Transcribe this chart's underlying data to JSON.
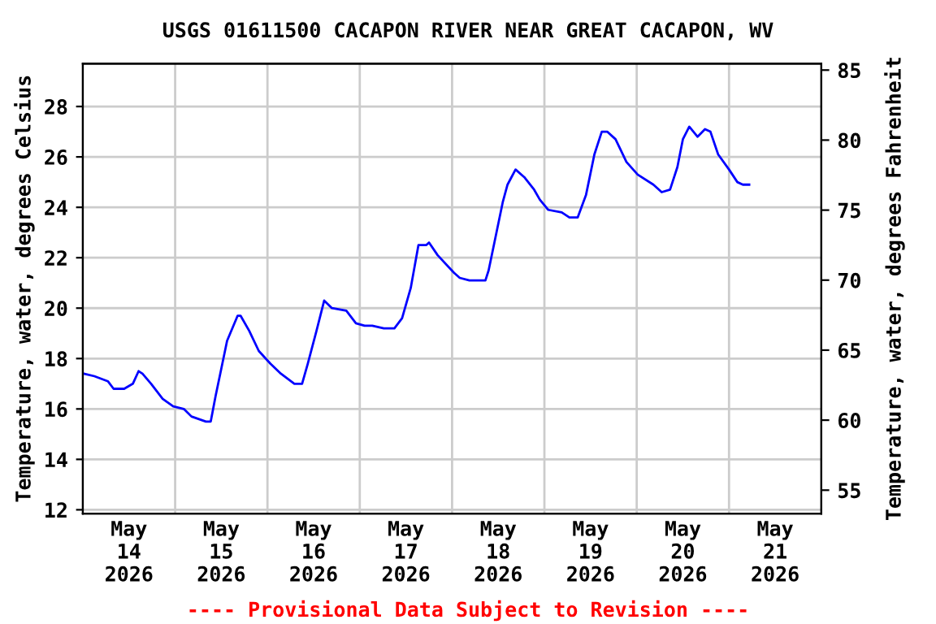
{
  "chart_data": {
    "type": "line",
    "title": "USGS 01611500 CACAPON RIVER NEAR GREAT CACAPON, WV",
    "ylabel": "Temperature, water, degrees Celsius",
    "y2label": "Temperature, water, degrees Fahrenheit",
    "annotations": [
      "---- Provisional Data Subject to Revision ----"
    ],
    "x": [
      "2026-05-14T00:15",
      "2026-05-14T03:00",
      "2026-05-14T06:30",
      "2026-05-14T08:00",
      "2026-05-14T10:45",
      "2026-05-14T13:00",
      "2026-05-14T14:30",
      "2026-05-14T15:30",
      "2026-05-14T17:45",
      "2026-05-14T20:45",
      "2026-05-14T23:30",
      "2026-05-15T02:15",
      "2026-05-15T04:15",
      "2026-05-15T08:00",
      "2026-05-15T09:15",
      "2026-05-15T10:30",
      "2026-05-15T12:00",
      "2026-05-15T13:30",
      "2026-05-15T16:15",
      "2026-05-15T17:00",
      "2026-05-15T19:15",
      "2026-05-15T21:45",
      "2026-05-16T00:45",
      "2026-05-16T03:30",
      "2026-05-16T07:00",
      "2026-05-16T09:00",
      "2026-05-16T10:30",
      "2026-05-16T12:45",
      "2026-05-16T14:45",
      "2026-05-16T16:45",
      "2026-05-16T20:30",
      "2026-05-16T23:00",
      "2026-05-17T01:15",
      "2026-05-17T03:15",
      "2026-05-17T06:15",
      "2026-05-17T09:00",
      "2026-05-17T11:00",
      "2026-05-17T13:15",
      "2026-05-17T15:15",
      "2026-05-17T17:15",
      "2026-05-17T18:00",
      "2026-05-17T20:15",
      "2026-05-18T00:30",
      "2026-05-18T02:00",
      "2026-05-18T04:30",
      "2026-05-18T08:40",
      "2026-05-18T09:30",
      "2026-05-18T11:00",
      "2026-05-18T13:10",
      "2026-05-18T14:25",
      "2026-05-18T16:30",
      "2026-05-18T18:45",
      "2026-05-18T21:20",
      "2026-05-18T22:50",
      "2026-05-19T01:00",
      "2026-05-19T04:30",
      "2026-05-19T06:30",
      "2026-05-19T08:40",
      "2026-05-19T10:50",
      "2026-05-19T13:00",
      "2026-05-19T14:55",
      "2026-05-19T16:20",
      "2026-05-19T18:30",
      "2026-05-19T21:20",
      "2026-05-20T00:15",
      "2026-05-20T04:20",
      "2026-05-20T06:30",
      "2026-05-20T08:40",
      "2026-05-20T10:35",
      "2026-05-20T12:00",
      "2026-05-20T13:40",
      "2026-05-20T15:50",
      "2026-05-20T17:45",
      "2026-05-20T19:10",
      "2026-05-20T21:10",
      "2026-05-21T00:00",
      "2026-05-21T02:10",
      "2026-05-21T03:35",
      "2026-05-21T05:15"
    ],
    "series": [
      {
        "color": "#0000ff",
        "values": [
          17.4,
          17.3,
          17.1,
          16.8,
          16.8,
          17.0,
          17.5,
          17.4,
          17.0,
          16.4,
          16.1,
          16.0,
          15.7,
          15.5,
          15.5,
          16.5,
          17.6,
          18.7,
          19.7,
          19.7,
          19.1,
          18.3,
          17.8,
          17.4,
          17.0,
          17.0,
          17.8,
          19.1,
          20.3,
          20.0,
          19.9,
          19.4,
          19.3,
          19.3,
          19.2,
          19.2,
          19.6,
          20.8,
          22.5,
          22.5,
          22.6,
          22.1,
          21.4,
          21.2,
          21.1,
          21.1,
          21.5,
          22.6,
          24.2,
          24.9,
          25.5,
          25.2,
          24.7,
          24.3,
          23.9,
          23.8,
          23.6,
          23.6,
          24.5,
          26.1,
          27.0,
          27.0,
          26.7,
          25.8,
          25.3,
          24.9,
          24.6,
          24.7,
          25.6,
          26.7,
          27.2,
          26.8,
          27.1,
          27.0,
          26.1,
          25.5,
          25.0,
          24.9,
          24.9
        ]
      }
    ],
    "xlim": [
      "2026-05-14T00:00",
      "2026-05-22T00:00"
    ],
    "xticks": [
      {
        "value": "2026-05-14T12:00",
        "label": "May\n14\n2026"
      },
      {
        "value": "2026-05-15T00:00",
        "label": null
      },
      {
        "value": "2026-05-15T12:00",
        "label": "May\n15\n2026"
      },
      {
        "value": "2026-05-16T00:00",
        "label": null
      },
      {
        "value": "2026-05-16T12:00",
        "label": "May\n16\n2026"
      },
      {
        "value": "2026-05-17T00:00",
        "label": null
      },
      {
        "value": "2026-05-17T12:00",
        "label": "May\n17\n2026"
      },
      {
        "value": "2026-05-18T00:00",
        "label": null
      },
      {
        "value": "2026-05-18T12:00",
        "label": "May\n18\n2026"
      },
      {
        "value": "2026-05-19T00:00",
        "label": null
      },
      {
        "value": "2026-05-19T12:00",
        "label": "May\n19\n2026"
      },
      {
        "value": "2026-05-20T00:00",
        "label": null
      },
      {
        "value": "2026-05-20T12:00",
        "label": "May\n20\n2026"
      },
      {
        "value": "2026-05-21T00:00",
        "label": null
      },
      {
        "value": "2026-05-21T12:00",
        "label": "May\n21\n2026"
      }
    ],
    "ylim": [
      11.85,
      29.7
    ],
    "yticks": [
      12,
      14,
      16,
      18,
      20,
      22,
      24,
      26,
      28
    ],
    "y2lim": [
      53.33,
      85.46
    ],
    "y2ticks": [
      55,
      60,
      65,
      70,
      75,
      80,
      85
    ],
    "grid": true,
    "legend": false,
    "marker": "none",
    "line_style": "solid"
  }
}
